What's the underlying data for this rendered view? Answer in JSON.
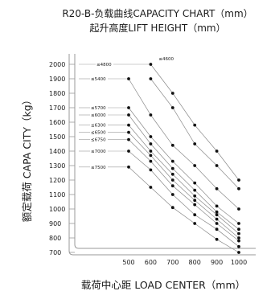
{
  "chart_data": {
    "type": "line",
    "title": "R20-B-负载曲线CAPACITY CHART（mm）",
    "subtitle": "起升高度LIFT HEIGHT（mm）",
    "ylabel": "额定载荷 CAPA CITY（kg）",
    "xlabel": "载荷中心距 LOAD CENTER（mm）",
    "x_ticks": [
      500,
      600,
      700,
      800,
      900,
      1000
    ],
    "y_ticks": [
      700,
      800,
      900,
      1000,
      1100,
      1200,
      1300,
      1400,
      1500,
      1600,
      1700,
      1800,
      1900,
      2000
    ],
    "ylim": [
      650,
      2050
    ],
    "xlim": [
      460,
      1010
    ],
    "series": [
      {
        "name": "≤4600",
        "x": [
          600,
          700,
          800,
          900,
          1000
        ],
        "y": [
          2000,
          1800,
          1580,
          1400,
          1200
        ]
      },
      {
        "name": "≤4800",
        "x": [
          600,
          700,
          800,
          900,
          1000
        ],
        "y": [
          1900,
          1700,
          1450,
          1300,
          1140
        ]
      },
      {
        "name": "≤5400",
        "x": [
          500,
          600,
          700,
          800,
          900,
          1000
        ],
        "y": [
          1900,
          1650,
          1440,
          1300,
          1140,
          1000
        ]
      },
      {
        "name": "≤5700",
        "x": [
          500,
          600,
          700,
          800,
          900,
          1000
        ],
        "y": [
          1700,
          1500,
          1330,
          1180,
          1020,
          900
        ]
      },
      {
        "name": "≤6000",
        "x": [
          500,
          600,
          700,
          800,
          900,
          1000
        ],
        "y": [
          1650,
          1450,
          1280,
          1130,
          980,
          860
        ]
      },
      {
        "name": "≤6300",
        "x": [
          500,
          600,
          700,
          800,
          900,
          1000
        ],
        "y": [
          1580,
          1400,
          1240,
          1090,
          960,
          830
        ]
      },
      {
        "name": "≤6500",
        "x": [
          500,
          600,
          700,
          800,
          900,
          1000
        ],
        "y": [
          1530,
          1370,
          1200,
          1060,
          930,
          800
        ]
      },
      {
        "name": "≤6750",
        "x": [
          500,
          600,
          700,
          800,
          900,
          1000
        ],
        "y": [
          1480,
          1330,
          1160,
          1030,
          900,
          780
        ]
      },
      {
        "name": "≤7000",
        "x": [
          500,
          600,
          700,
          800,
          900,
          1000
        ],
        "y": [
          1400,
          1270,
          1100,
          960,
          860,
          740
        ]
      },
      {
        "name": "≤7500",
        "x": [
          500,
          600,
          700,
          800,
          900,
          1000
        ],
        "y": [
          1290,
          1150,
          1010,
          900,
          790,
          700
        ]
      }
    ],
    "point_labels": [
      {
        "text": "≤4800",
        "x": 600,
        "y": 2000
      },
      {
        "text": "≤4600",
        "x": 650,
        "y": 2000
      },
      {
        "text": "≤5400",
        "x": 500,
        "y": 1900
      },
      {
        "text": "≤5700",
        "x": 500,
        "y": 1700
      },
      {
        "text": "≤6000",
        "x": 500,
        "y": 1650
      },
      {
        "text": "≤6300",
        "x": 500,
        "y": 1580
      },
      {
        "text": "≤6500",
        "x": 500,
        "y": 1530
      },
      {
        "text": "≤6750",
        "x": 500,
        "y": 1480
      },
      {
        "text": "≤7000",
        "x": 500,
        "y": 1400
      },
      {
        "text": "≤7500",
        "x": 500,
        "y": 1290
      }
    ],
    "grid": false,
    "legend": "inline"
  }
}
